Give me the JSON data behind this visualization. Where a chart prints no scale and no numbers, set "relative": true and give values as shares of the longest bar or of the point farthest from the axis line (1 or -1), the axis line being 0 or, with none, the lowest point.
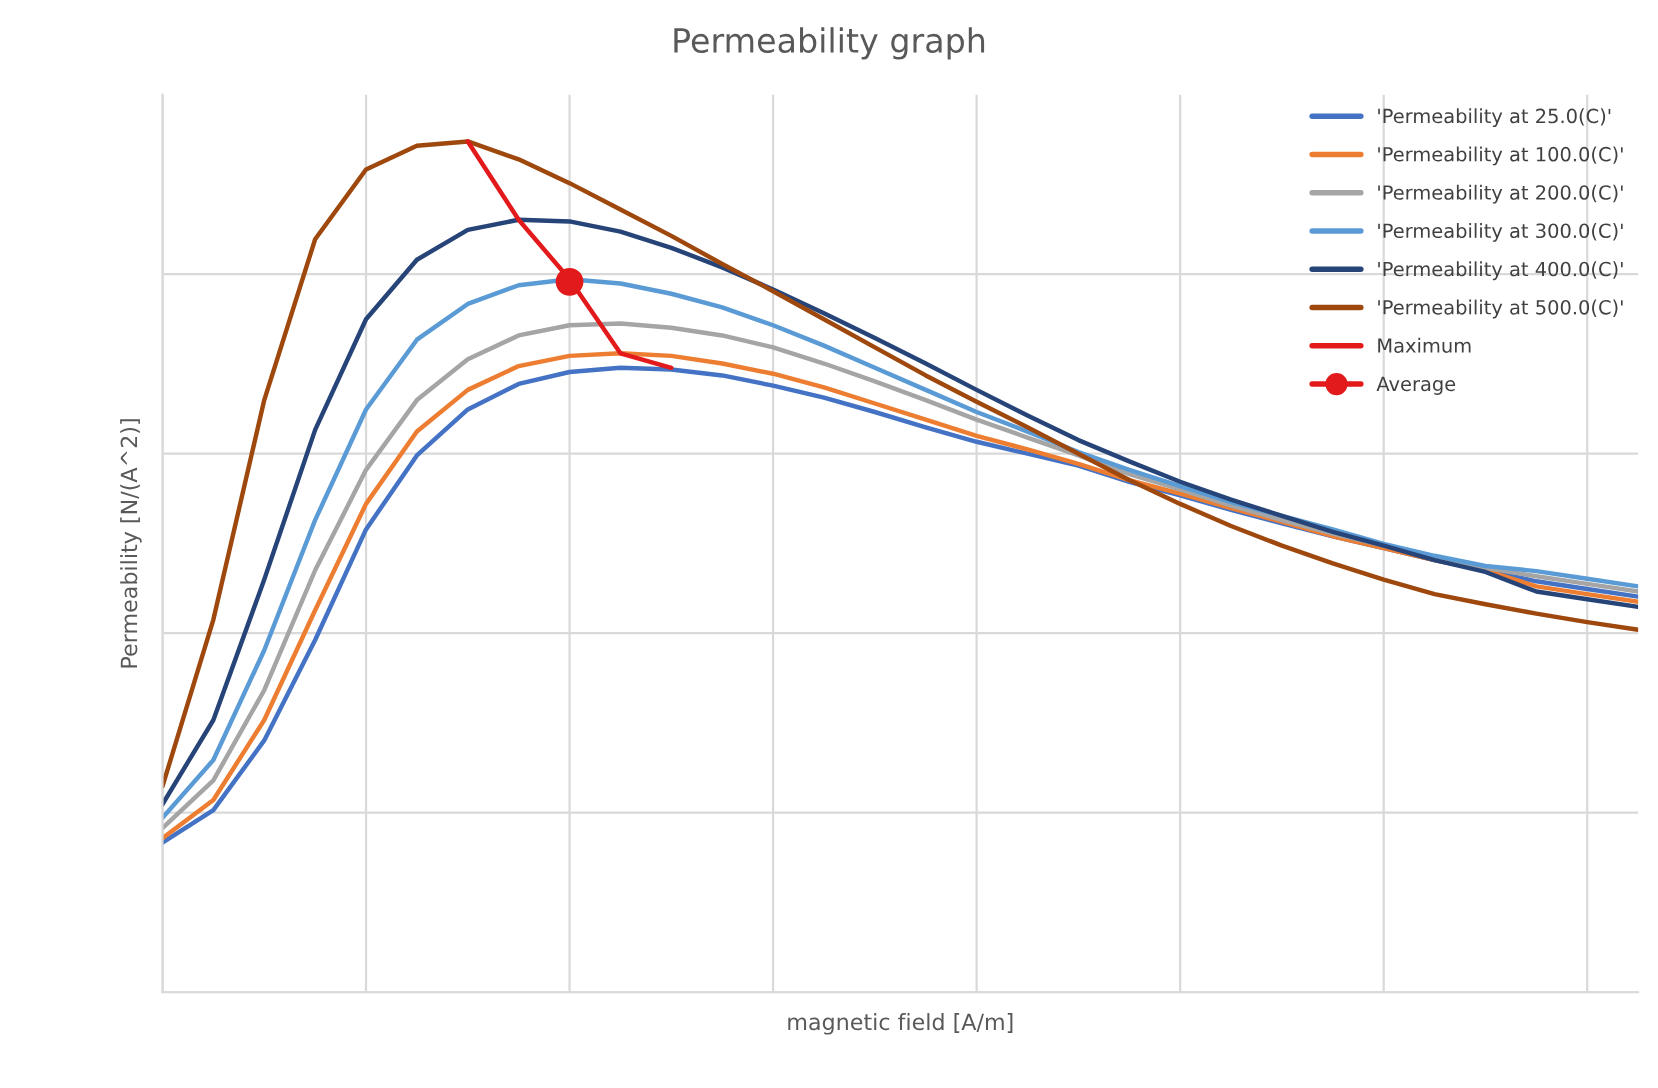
{
  "chart_data": {
    "type": "line",
    "title": "Permeability graph",
    "xlabel": "magnetic field [A/m]",
    "ylabel": "Permeability [N/(A^2)]",
    "relative": true,
    "grid": true,
    "legend": "top right",
    "marker": "none",
    "categories": [
      null,
      null,
      null,
      null,
      null,
      null,
      null,
      null,
      null,
      null,
      null,
      null,
      null,
      null,
      null,
      null,
      null,
      null,
      null,
      null,
      null,
      null,
      null,
      null,
      null,
      null,
      null,
      null,
      null,
      null
    ],
    "series": [
      {
        "name": "'Permeability at 25.0(C)'",
        "color": "#4472c4",
        "values": [
          0.176,
          0.214,
          0.296,
          0.414,
          0.544,
          0.631,
          0.685,
          0.715,
          0.729,
          0.734,
          0.732,
          0.725,
          0.713,
          0.699,
          0.682,
          0.664,
          0.647,
          0.633,
          0.619,
          0.6,
          0.584,
          0.567,
          0.551,
          0.536,
          0.522,
          0.508,
          0.496,
          0.483,
          0.474,
          0.465
        ]
      },
      {
        "name": "'Permeability at 100.0(C)'",
        "color": "#ed7d31",
        "values": [
          0.181,
          0.226,
          0.32,
          0.449,
          0.574,
          0.659,
          0.708,
          0.736,
          0.748,
          0.751,
          0.748,
          0.739,
          0.727,
          0.711,
          0.692,
          0.673,
          0.654,
          0.638,
          0.621,
          0.602,
          0.586,
          0.569,
          0.553,
          0.536,
          0.522,
          0.508,
          0.496,
          0.477,
          0.468,
          0.459
        ]
      },
      {
        "name": "'Permeability at 200.0(C)'",
        "color": "#a5a5a5",
        "values": [
          0.193,
          0.249,
          0.355,
          0.496,
          0.614,
          0.696,
          0.744,
          0.772,
          0.784,
          0.786,
          0.781,
          0.772,
          0.758,
          0.739,
          0.718,
          0.696,
          0.673,
          0.652,
          0.631,
          0.609,
          0.591,
          0.572,
          0.555,
          0.539,
          0.525,
          0.511,
          0.499,
          0.489,
          0.48,
          0.471
        ]
      },
      {
        "name": "'Permeability at 300.0(C)'",
        "color": "#5b9bd5",
        "values": [
          0.205,
          0.273,
          0.402,
          0.555,
          0.685,
          0.767,
          0.809,
          0.831,
          0.838,
          0.833,
          0.821,
          0.805,
          0.784,
          0.76,
          0.734,
          0.708,
          0.682,
          0.659,
          0.635,
          0.614,
          0.595,
          0.576,
          0.56,
          0.544,
          0.527,
          0.513,
          0.501,
          0.495,
          0.486,
          0.477
        ]
      },
      {
        "name": "'Permeability at 400.0(C)'",
        "color": "#264478",
        "values": [
          0.221,
          0.32,
          0.485,
          0.661,
          0.791,
          0.861,
          0.896,
          0.908,
          0.906,
          0.894,
          0.875,
          0.852,
          0.826,
          0.798,
          0.769,
          0.739,
          0.708,
          0.678,
          0.649,
          0.624,
          0.6,
          0.579,
          0.56,
          0.541,
          0.525,
          0.508,
          0.494,
          0.471,
          0.462,
          0.453
        ]
      },
      {
        "name": "'Permeability at 500.0(C)'",
        "color": "#9e480e",
        "values": [
          0.242,
          0.438,
          0.696,
          0.885,
          0.967,
          0.995,
          1.0,
          0.979,
          0.951,
          0.92,
          0.889,
          0.856,
          0.824,
          0.791,
          0.758,
          0.725,
          0.694,
          0.664,
          0.633,
          0.602,
          0.574,
          0.548,
          0.525,
          0.504,
          0.485,
          0.468,
          0.456,
          0.445,
          0.435,
          0.426
        ]
      },
      {
        "name": "Maximum",
        "color": "#e31a1c",
        "values": [
          null,
          null,
          null,
          null,
          null,
          null,
          1.0,
          0.908,
          0.838,
          0.751,
          0.734,
          null,
          null,
          null,
          null,
          null,
          null,
          null,
          null,
          null,
          null,
          null,
          null,
          null,
          null,
          null,
          null,
          null,
          null,
          null
        ]
      },
      {
        "name": "Average",
        "color": "#e31a1c",
        "marker": "circle",
        "values": [
          null,
          null,
          null,
          null,
          null,
          null,
          null,
          null,
          0.835,
          null,
          null,
          null,
          null,
          null,
          null,
          null,
          null,
          null,
          null,
          null,
          null,
          null,
          null,
          null,
          null,
          null,
          null,
          null,
          null,
          null
        ]
      }
    ]
  }
}
